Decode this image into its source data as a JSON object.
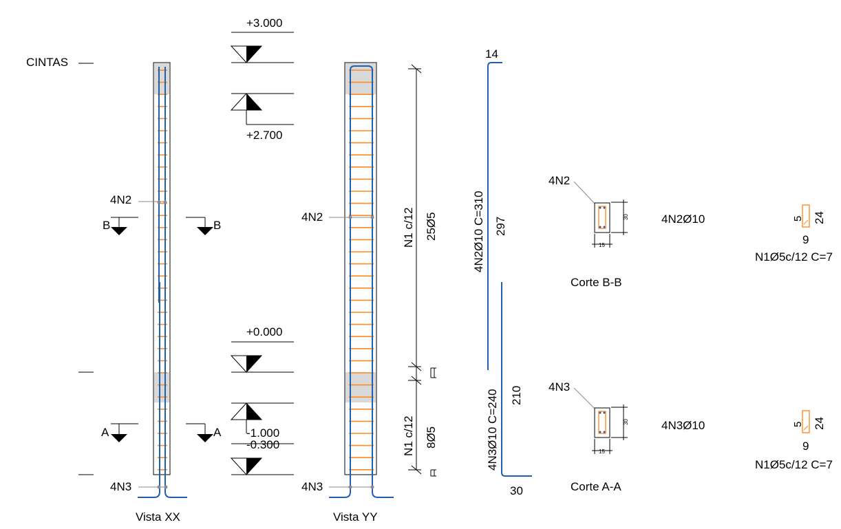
{
  "labels": {
    "cintas": "CINTAS",
    "n2": "4N2",
    "n3": "4N3",
    "section_b": "B",
    "section_a": "A",
    "view_xx": "Vista XX",
    "view_yy": "Vista YY"
  },
  "levels": {
    "top": "+3.000",
    "upper": "+2.700",
    "zero": "+0.000",
    "low1": "-1.000",
    "low2": "-0.300"
  },
  "dims": {
    "stirrups_upper": "N1 c/12",
    "stirrups_upper_count": "25Ø5",
    "stirrups_lower": "N1 c/12",
    "stirrups_lower_count": "8Ø5"
  },
  "bars": {
    "n2_top_hook": "14",
    "n2_desc": "4N2Ø10 C=310",
    "n2_length": "297",
    "n3_desc": "4N3Ø10 C=240",
    "n3_length": "210",
    "n3_hook": "30"
  },
  "sections": {
    "bb": {
      "tag": "4N2",
      "width": "15",
      "height": "30",
      "bar_spec": "4N2Ø10",
      "title": "Corte B-B",
      "stirrup_hook": "5",
      "stirrup_h": "24",
      "stirrup_w": "9",
      "stirrup_spec": "N1Ø5c/12 C=7"
    },
    "aa": {
      "tag": "4N3",
      "width": "15",
      "height": "30",
      "bar_spec": "4N3Ø10",
      "title": "Corte A-A",
      "stirrup_hook": "5",
      "stirrup_h": "24",
      "stirrup_w": "9",
      "stirrup_spec": "N1Ø5c/12 C=7"
    }
  },
  "colors": {
    "rebar": "#1f5fae",
    "stirrup": "#ff8a1f",
    "concrete_fill": "#d9d9d9"
  }
}
